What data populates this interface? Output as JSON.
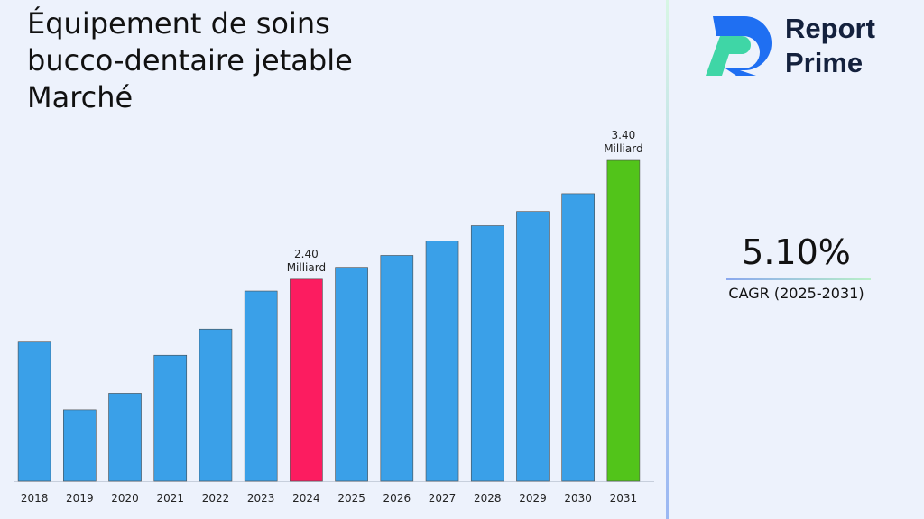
{
  "chart_data": {
    "type": "bar",
    "title": "Équipement de soins bucco-dentaire jetable Marché",
    "categories": [
      "2018",
      "2019",
      "2020",
      "2021",
      "2022",
      "2023",
      "2024",
      "2025",
      "2026",
      "2027",
      "2028",
      "2029",
      "2030",
      "2031"
    ],
    "values": [
      1.87,
      1.3,
      1.44,
      1.76,
      1.98,
      2.3,
      2.4,
      2.5,
      2.6,
      2.72,
      2.85,
      2.97,
      3.12,
      3.4
    ],
    "value_labels": [
      null,
      null,
      null,
      null,
      null,
      null,
      "2.40 Milliard",
      null,
      null,
      null,
      null,
      null,
      null,
      "3.40 Milliard"
    ],
    "colors": [
      "#3aa0e8",
      "#3aa0e8",
      "#3aa0e8",
      "#3aa0e8",
      "#3aa0e8",
      "#3aa0e8",
      "#fc1c60",
      "#3aa0e8",
      "#3aa0e8",
      "#3aa0e8",
      "#3aa0e8",
      "#3aa0e8",
      "#3aa0e8",
      "#52c41a"
    ],
    "ylim": [
      0.7,
      3.4
    ]
  },
  "brand": {
    "line1": "Report",
    "line2": "Prime"
  },
  "cagr": {
    "value": "5.10%",
    "label": "CAGR (2025-2031)"
  }
}
